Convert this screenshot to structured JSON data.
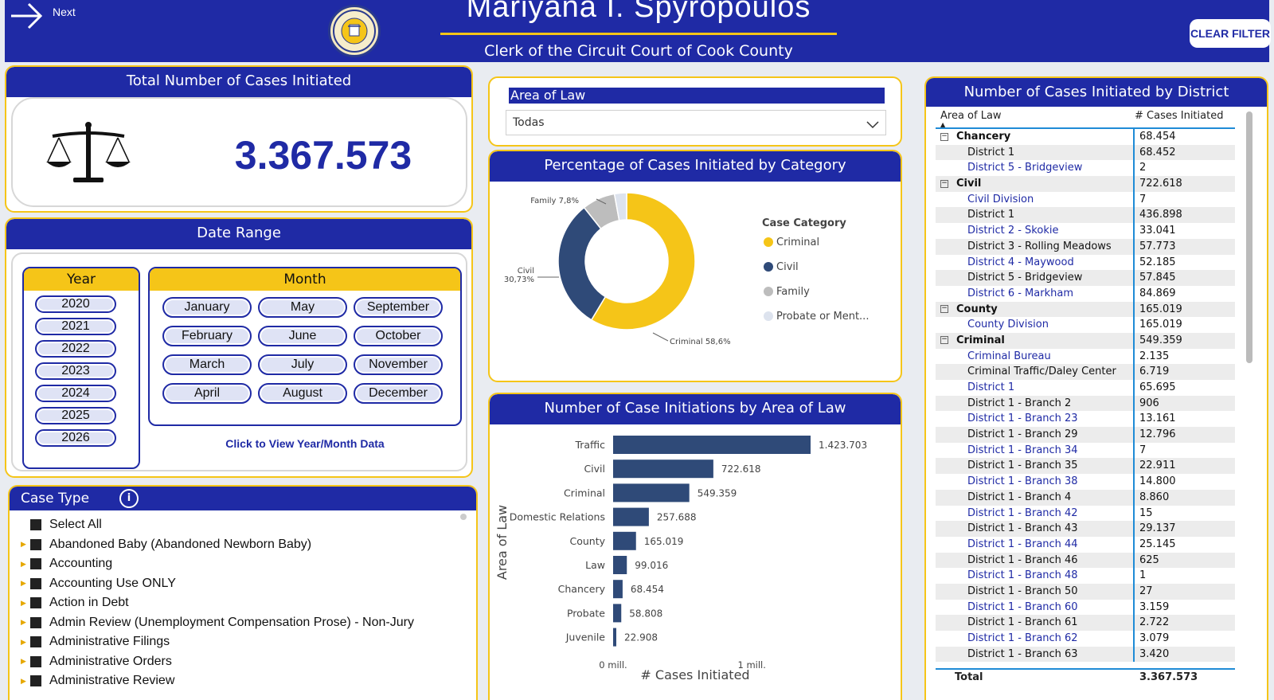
{
  "header": {
    "next_label": "Next",
    "title": "Mariyana I. Spyropoulos",
    "subtitle": "Clerk of the Circuit Court of Cook County",
    "clear_filter_label": "CLEAR FILTER",
    "seal_text": "CLERK · CIRCUIT COURT OF COOK COUNTY"
  },
  "total": {
    "title": "Total Number of Cases Initiated",
    "value": "3.367.573"
  },
  "date_range": {
    "title": "Date Range",
    "year_header": "Year",
    "years": [
      "2020",
      "2021",
      "2022",
      "2023",
      "2024",
      "2025",
      "2026"
    ],
    "month_header": "Month",
    "months": [
      "January",
      "May",
      "September",
      "February",
      "June",
      "October",
      "March",
      "July",
      "November",
      "April",
      "August",
      "December"
    ],
    "view_link": "Click to View Year/Month Data"
  },
  "case_type": {
    "title": "Case Type",
    "items": [
      "Select All",
      "Abandoned Baby (Abandoned Newborn Baby)",
      "Accounting",
      "Accounting Use ONLY",
      "Action in Debt",
      "Admin Review (Unemployment Compensation Prose) - Non-Jury",
      "Administrative Filings",
      "Administrative Orders",
      "Administrative Review"
    ]
  },
  "area_of_law": {
    "label": "Area of Law",
    "selected": "Todas"
  },
  "donut": {
    "title": "Percentage of Cases Initiated by Category",
    "chart_data": {
      "type": "pie",
      "legend_title": "Case Category",
      "categories": [
        "Criminal",
        "Civil",
        "Family",
        "Probate or Ment..."
      ],
      "values": [
        58.6,
        30.73,
        7.8,
        2.87
      ],
      "labels": [
        "Criminal 58,6%",
        "Civil 30,73%",
        "Family 7,8%"
      ],
      "colors": [
        "#f5c518",
        "#2f4a78",
        "#bdbdbd",
        "#dde3ee"
      ],
      "legend_position": "right"
    }
  },
  "bars": {
    "title": "Number of Case Initiations by Area of Law",
    "chart_data": {
      "type": "bar",
      "orientation": "horizontal",
      "categories": [
        "Traffic",
        "Civil",
        "Criminal",
        "Domestic Relations",
        "County",
        "Law",
        "Chancery",
        "Probate",
        "Juvenile"
      ],
      "values": [
        1423703,
        722618,
        549359,
        257688,
        165019,
        99016,
        68454,
        58808,
        22908
      ],
      "value_labels": [
        "1.423.703",
        "722.618",
        "549.359",
        "257.688",
        "165.019",
        "99.016",
        "68.454",
        "58.808",
        "22.908"
      ],
      "ylabel": "Area of Law",
      "xlabel": "# Cases Initiated",
      "xticks": [
        "0 mill.",
        "1 mill."
      ],
      "xlim": [
        0,
        1600000
      ],
      "color": "#2f4a78"
    }
  },
  "districts": {
    "title": "Number of Cases Initiated by District",
    "col1": "Area of Law",
    "col2": "# Cases Initiated",
    "rows": [
      {
        "name": "Chancery",
        "value": "68.454",
        "type": "group"
      },
      {
        "name": "District 1",
        "value": "68.452",
        "type": "sub",
        "color": "black"
      },
      {
        "name": "District 5 - Bridgeview",
        "value": "2",
        "type": "sub",
        "color": "blue"
      },
      {
        "name": "Civil",
        "value": "722.618",
        "type": "group"
      },
      {
        "name": "Civil Division",
        "value": "7",
        "type": "sub",
        "color": "blue"
      },
      {
        "name": "District 1",
        "value": "436.898",
        "type": "sub",
        "color": "black"
      },
      {
        "name": "District 2 - Skokie",
        "value": "33.041",
        "type": "sub",
        "color": "blue"
      },
      {
        "name": "District 3 - Rolling Meadows",
        "value": "57.773",
        "type": "sub",
        "color": "black"
      },
      {
        "name": "District 4 - Maywood",
        "value": "52.185",
        "type": "sub",
        "color": "blue"
      },
      {
        "name": "District 5 - Bridgeview",
        "value": "57.845",
        "type": "sub",
        "color": "black"
      },
      {
        "name": "District 6 - Markham",
        "value": "84.869",
        "type": "sub",
        "color": "blue"
      },
      {
        "name": "County",
        "value": "165.019",
        "type": "group"
      },
      {
        "name": "County Division",
        "value": "165.019",
        "type": "sub",
        "color": "blue"
      },
      {
        "name": "Criminal",
        "value": "549.359",
        "type": "group"
      },
      {
        "name": "Criminal Bureau",
        "value": "2.135",
        "type": "sub",
        "color": "blue"
      },
      {
        "name": "Criminal Traffic/Daley Center",
        "value": "6.719",
        "type": "sub",
        "color": "black"
      },
      {
        "name": "District 1",
        "value": "65.695",
        "type": "sub",
        "color": "blue"
      },
      {
        "name": "District 1 - Branch 2",
        "value": "906",
        "type": "sub",
        "color": "black"
      },
      {
        "name": "District 1 - Branch 23",
        "value": "13.161",
        "type": "sub",
        "color": "blue"
      },
      {
        "name": "District 1 - Branch 29",
        "value": "12.796",
        "type": "sub",
        "color": "black"
      },
      {
        "name": "District 1 - Branch 34",
        "value": "7",
        "type": "sub",
        "color": "blue"
      },
      {
        "name": "District 1 - Branch 35",
        "value": "22.911",
        "type": "sub",
        "color": "black"
      },
      {
        "name": "District 1 - Branch 38",
        "value": "14.800",
        "type": "sub",
        "color": "blue"
      },
      {
        "name": "District 1 - Branch 4",
        "value": "8.860",
        "type": "sub",
        "color": "black"
      },
      {
        "name": "District 1 - Branch 42",
        "value": "15",
        "type": "sub",
        "color": "blue"
      },
      {
        "name": "District 1 - Branch 43",
        "value": "29.137",
        "type": "sub",
        "color": "black"
      },
      {
        "name": "District 1 - Branch 44",
        "value": "25.145",
        "type": "sub",
        "color": "blue"
      },
      {
        "name": "District 1 - Branch 46",
        "value": "625",
        "type": "sub",
        "color": "black"
      },
      {
        "name": "District 1 - Branch 48",
        "value": "1",
        "type": "sub",
        "color": "blue"
      },
      {
        "name": "District 1 - Branch 50",
        "value": "27",
        "type": "sub",
        "color": "black"
      },
      {
        "name": "District 1 - Branch 60",
        "value": "3.159",
        "type": "sub",
        "color": "blue"
      },
      {
        "name": "District 1 - Branch 61",
        "value": "2.722",
        "type": "sub",
        "color": "black"
      },
      {
        "name": "District 1 - Branch 62",
        "value": "3.079",
        "type": "sub",
        "color": "blue"
      },
      {
        "name": "District 1 - Branch 63",
        "value": "3.420",
        "type": "sub",
        "color": "black"
      }
    ],
    "total_label": "Total",
    "total_value": "3.367.573"
  }
}
